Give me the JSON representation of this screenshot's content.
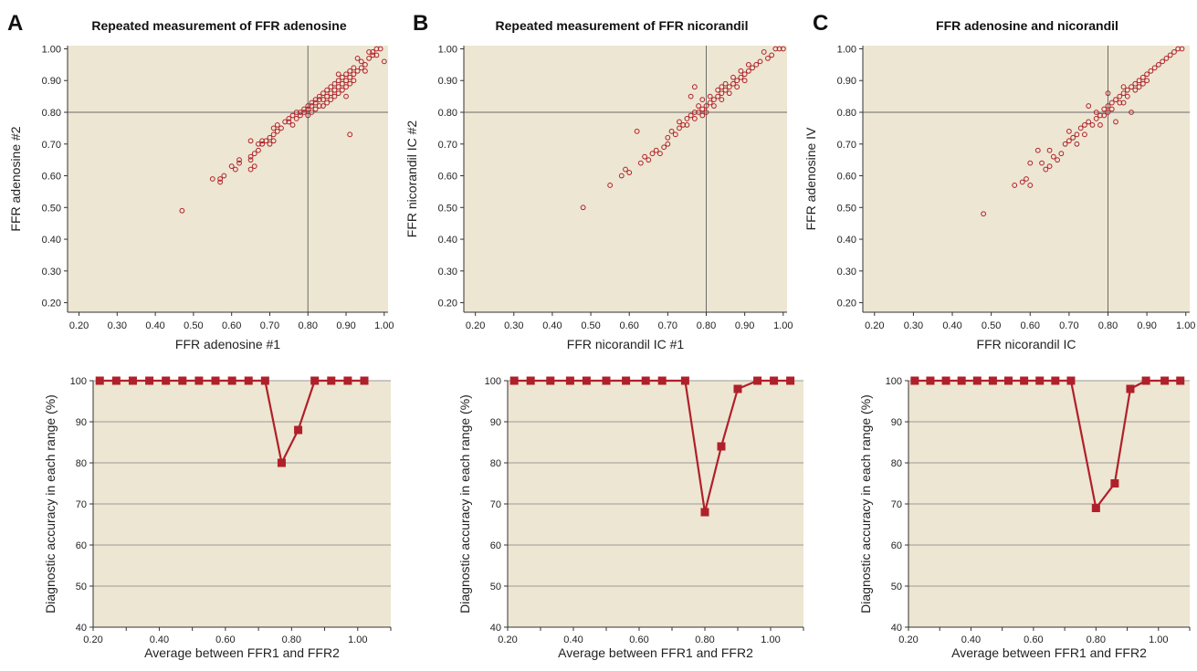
{
  "colors": {
    "plot_bg": "#ede6d2",
    "marker": "#b0202a",
    "ref_line": "#6b6b6b",
    "grid": "#9a9a9a"
  },
  "panels": [
    {
      "letter": "A",
      "title": "Repeated measurement of FFR adenosine"
    },
    {
      "letter": "B",
      "title": "Repeated measurement of FFR nicorandil"
    },
    {
      "letter": "C",
      "title": "FFR adenosine and nicorandil"
    }
  ],
  "chart_data": [
    {
      "type": "scatter",
      "panel": "A",
      "title": "Repeated measurement of FFR adenosine",
      "xlabel": "FFR adenosine #1",
      "ylabel": "FFR adenosine #2",
      "xlim": [
        0.17,
        1.01
      ],
      "ylim": [
        0.17,
        1.01
      ],
      "xticks": [
        "0.20",
        "0.30",
        "0.40",
        "0.50",
        "0.60",
        "0.70",
        "0.80",
        "0.90",
        "1.00"
      ],
      "yticks": [
        "0.20",
        "0.30",
        "0.40",
        "0.50",
        "0.60",
        "0.70",
        "0.80",
        "0.90",
        "1.00"
      ],
      "reference_lines": {
        "x": 0.8,
        "y": 0.8
      },
      "grid": false,
      "points": [
        [
          0.47,
          0.49
        ],
        [
          0.55,
          0.59
        ],
        [
          0.57,
          0.58
        ],
        [
          0.58,
          0.6
        ],
        [
          0.57,
          0.59
        ],
        [
          0.6,
          0.63
        ],
        [
          0.61,
          0.62
        ],
        [
          0.62,
          0.64
        ],
        [
          0.62,
          0.65
        ],
        [
          0.65,
          0.65
        ],
        [
          0.65,
          0.66
        ],
        [
          0.66,
          0.63
        ],
        [
          0.65,
          0.62
        ],
        [
          0.66,
          0.67
        ],
        [
          0.67,
          0.68
        ],
        [
          0.65,
          0.71
        ],
        [
          0.67,
          0.7
        ],
        [
          0.68,
          0.7
        ],
        [
          0.68,
          0.71
        ],
        [
          0.69,
          0.71
        ],
        [
          0.7,
          0.72
        ],
        [
          0.7,
          0.7
        ],
        [
          0.71,
          0.73
        ],
        [
          0.71,
          0.75
        ],
        [
          0.71,
          0.71
        ],
        [
          0.72,
          0.74
        ],
        [
          0.72,
          0.76
        ],
        [
          0.73,
          0.75
        ],
        [
          0.74,
          0.77
        ],
        [
          0.75,
          0.77
        ],
        [
          0.75,
          0.78
        ],
        [
          0.76,
          0.76
        ],
        [
          0.76,
          0.79
        ],
        [
          0.77,
          0.78
        ],
        [
          0.77,
          0.8
        ],
        [
          0.78,
          0.79
        ],
        [
          0.78,
          0.8
        ],
        [
          0.79,
          0.8
        ],
        [
          0.79,
          0.81
        ],
        [
          0.8,
          0.81
        ],
        [
          0.8,
          0.82
        ],
        [
          0.8,
          0.79
        ],
        [
          0.81,
          0.82
        ],
        [
          0.81,
          0.83
        ],
        [
          0.81,
          0.8
        ],
        [
          0.82,
          0.83
        ],
        [
          0.82,
          0.84
        ],
        [
          0.82,
          0.81
        ],
        [
          0.83,
          0.84
        ],
        [
          0.83,
          0.82
        ],
        [
          0.83,
          0.85
        ],
        [
          0.84,
          0.84
        ],
        [
          0.84,
          0.86
        ],
        [
          0.84,
          0.82
        ],
        [
          0.85,
          0.85
        ],
        [
          0.85,
          0.87
        ],
        [
          0.85,
          0.83
        ],
        [
          0.86,
          0.86
        ],
        [
          0.86,
          0.88
        ],
        [
          0.86,
          0.84
        ],
        [
          0.87,
          0.87
        ],
        [
          0.87,
          0.89
        ],
        [
          0.87,
          0.85
        ],
        [
          0.88,
          0.88
        ],
        [
          0.88,
          0.9
        ],
        [
          0.88,
          0.86
        ],
        [
          0.88,
          0.92
        ],
        [
          0.89,
          0.89
        ],
        [
          0.89,
          0.91
        ],
        [
          0.89,
          0.87
        ],
        [
          0.9,
          0.9
        ],
        [
          0.9,
          0.92
        ],
        [
          0.9,
          0.88
        ],
        [
          0.9,
          0.85
        ],
        [
          0.91,
          0.91
        ],
        [
          0.91,
          0.93
        ],
        [
          0.91,
          0.89
        ],
        [
          0.91,
          0.73
        ],
        [
          0.92,
          0.92
        ],
        [
          0.92,
          0.94
        ],
        [
          0.92,
          0.9
        ],
        [
          0.93,
          0.93
        ],
        [
          0.93,
          0.97
        ],
        [
          0.94,
          0.94
        ],
        [
          0.94,
          0.96
        ],
        [
          0.95,
          0.95
        ],
        [
          0.95,
          0.93
        ],
        [
          0.96,
          0.97
        ],
        [
          0.96,
          0.99
        ],
        [
          0.97,
          0.98
        ],
        [
          0.97,
          0.99
        ],
        [
          0.98,
          0.98
        ],
        [
          0.98,
          1.0
        ],
        [
          0.99,
          1.0
        ],
        [
          1.0,
          0.96
        ]
      ]
    },
    {
      "type": "scatter",
      "panel": "B",
      "title": "Repeated measurement of FFR nicorandil",
      "xlabel": "FFR nicorandil IC #1",
      "ylabel": "FFR nicorandil IC #2",
      "xlim": [
        0.17,
        1.01
      ],
      "ylim": [
        0.17,
        1.01
      ],
      "xticks": [
        "0.20",
        "0.30",
        "0.40",
        "0.50",
        "0.60",
        "0.70",
        "0.80",
        "0.90",
        "1.00"
      ],
      "yticks": [
        "0.20",
        "0.30",
        "0.40",
        "0.50",
        "0.60",
        "0.70",
        "0.80",
        "0.90",
        "1.00"
      ],
      "reference_lines": {
        "x": 0.8,
        "y": 0.8
      },
      "grid": false,
      "points": [
        [
          0.48,
          0.5
        ],
        [
          0.55,
          0.57
        ],
        [
          0.58,
          0.6
        ],
        [
          0.59,
          0.62
        ],
        [
          0.6,
          0.61
        ],
        [
          0.62,
          0.74
        ],
        [
          0.63,
          0.64
        ],
        [
          0.64,
          0.66
        ],
        [
          0.65,
          0.65
        ],
        [
          0.66,
          0.67
        ],
        [
          0.67,
          0.68
        ],
        [
          0.68,
          0.67
        ],
        [
          0.69,
          0.69
        ],
        [
          0.7,
          0.7
        ],
        [
          0.7,
          0.72
        ],
        [
          0.71,
          0.74
        ],
        [
          0.72,
          0.73
        ],
        [
          0.73,
          0.75
        ],
        [
          0.73,
          0.77
        ],
        [
          0.74,
          0.76
        ],
        [
          0.75,
          0.78
        ],
        [
          0.75,
          0.76
        ],
        [
          0.76,
          0.79
        ],
        [
          0.76,
          0.85
        ],
        [
          0.77,
          0.8
        ],
        [
          0.77,
          0.78
        ],
        [
          0.77,
          0.88
        ],
        [
          0.78,
          0.8
        ],
        [
          0.78,
          0.82
        ],
        [
          0.79,
          0.81
        ],
        [
          0.79,
          0.79
        ],
        [
          0.79,
          0.84
        ],
        [
          0.8,
          0.82
        ],
        [
          0.8,
          0.8
        ],
        [
          0.81,
          0.83
        ],
        [
          0.81,
          0.85
        ],
        [
          0.82,
          0.84
        ],
        [
          0.82,
          0.82
        ],
        [
          0.83,
          0.85
        ],
        [
          0.83,
          0.87
        ],
        [
          0.84,
          0.86
        ],
        [
          0.84,
          0.88
        ],
        [
          0.84,
          0.84
        ],
        [
          0.85,
          0.87
        ],
        [
          0.85,
          0.89
        ],
        [
          0.86,
          0.88
        ],
        [
          0.86,
          0.86
        ],
        [
          0.87,
          0.89
        ],
        [
          0.87,
          0.91
        ],
        [
          0.88,
          0.9
        ],
        [
          0.88,
          0.88
        ],
        [
          0.89,
          0.91
        ],
        [
          0.89,
          0.93
        ],
        [
          0.9,
          0.92
        ],
        [
          0.9,
          0.9
        ],
        [
          0.91,
          0.93
        ],
        [
          0.91,
          0.95
        ],
        [
          0.92,
          0.94
        ],
        [
          0.93,
          0.95
        ],
        [
          0.94,
          0.96
        ],
        [
          0.95,
          0.99
        ],
        [
          0.96,
          0.97
        ],
        [
          0.97,
          0.98
        ],
        [
          0.98,
          1.0
        ],
        [
          0.99,
          1.0
        ],
        [
          1.0,
          1.0
        ]
      ]
    },
    {
      "type": "scatter",
      "panel": "C",
      "title": "FFR adenosine and nicorandil",
      "xlabel": "FFR nicorandil IC",
      "ylabel": "FFR adenosine IV",
      "xlim": [
        0.17,
        1.01
      ],
      "ylim": [
        0.17,
        1.01
      ],
      "xticks": [
        "0.20",
        "0.30",
        "0.40",
        "0.50",
        "0.60",
        "0.70",
        "0.80",
        "0.90",
        "1.00"
      ],
      "yticks": [
        "0.20",
        "0.30",
        "0.40",
        "0.50",
        "0.60",
        "0.70",
        "0.80",
        "0.90",
        "1.00"
      ],
      "reference_lines": {
        "x": 0.8,
        "y": 0.8
      },
      "grid": false,
      "points": [
        [
          0.48,
          0.48
        ],
        [
          0.56,
          0.57
        ],
        [
          0.58,
          0.58
        ],
        [
          0.59,
          0.59
        ],
        [
          0.6,
          0.64
        ],
        [
          0.6,
          0.57
        ],
        [
          0.62,
          0.68
        ],
        [
          0.63,
          0.64
        ],
        [
          0.64,
          0.62
        ],
        [
          0.65,
          0.63
        ],
        [
          0.65,
          0.68
        ],
        [
          0.66,
          0.66
        ],
        [
          0.67,
          0.65
        ],
        [
          0.68,
          0.67
        ],
        [
          0.69,
          0.7
        ],
        [
          0.7,
          0.71
        ],
        [
          0.7,
          0.74
        ],
        [
          0.71,
          0.72
        ],
        [
          0.72,
          0.7
        ],
        [
          0.72,
          0.73
        ],
        [
          0.73,
          0.75
        ],
        [
          0.74,
          0.76
        ],
        [
          0.74,
          0.73
        ],
        [
          0.75,
          0.77
        ],
        [
          0.75,
          0.82
        ],
        [
          0.76,
          0.76
        ],
        [
          0.77,
          0.78
        ],
        [
          0.77,
          0.8
        ],
        [
          0.78,
          0.79
        ],
        [
          0.78,
          0.76
        ],
        [
          0.79,
          0.81
        ],
        [
          0.79,
          0.79
        ],
        [
          0.8,
          0.82
        ],
        [
          0.8,
          0.8
        ],
        [
          0.8,
          0.86
        ],
        [
          0.81,
          0.83
        ],
        [
          0.81,
          0.81
        ],
        [
          0.82,
          0.84
        ],
        [
          0.82,
          0.77
        ],
        [
          0.83,
          0.85
        ],
        [
          0.83,
          0.83
        ],
        [
          0.84,
          0.86
        ],
        [
          0.84,
          0.83
        ],
        [
          0.84,
          0.88
        ],
        [
          0.85,
          0.87
        ],
        [
          0.85,
          0.85
        ],
        [
          0.86,
          0.88
        ],
        [
          0.86,
          0.8
        ],
        [
          0.87,
          0.89
        ],
        [
          0.87,
          0.87
        ],
        [
          0.88,
          0.9
        ],
        [
          0.88,
          0.88
        ],
        [
          0.89,
          0.91
        ],
        [
          0.89,
          0.89
        ],
        [
          0.9,
          0.92
        ],
        [
          0.9,
          0.9
        ],
        [
          0.91,
          0.93
        ],
        [
          0.92,
          0.94
        ],
        [
          0.93,
          0.95
        ],
        [
          0.94,
          0.96
        ],
        [
          0.95,
          0.97
        ],
        [
          0.96,
          0.98
        ],
        [
          0.97,
          0.99
        ],
        [
          0.98,
          1.0
        ],
        [
          0.99,
          1.0
        ]
      ]
    },
    {
      "type": "line",
      "panel": "A",
      "xlabel": "Average between FFR1 and FFR2",
      "ylabel": "Diagnostic accuracy in each range (%)",
      "xlim": [
        0.2,
        1.1
      ],
      "ylim": [
        40,
        100
      ],
      "xticks": [
        "0.20",
        "0.40",
        "0.60",
        "0.80",
        "1.00"
      ],
      "yticks": [
        "40",
        "50",
        "60",
        "70",
        "80",
        "90",
        "100"
      ],
      "grid": true,
      "x": [
        0.22,
        0.27,
        0.32,
        0.37,
        0.42,
        0.47,
        0.52,
        0.57,
        0.62,
        0.67,
        0.72,
        0.77,
        0.82,
        0.87,
        0.92,
        0.97,
        1.02
      ],
      "values": [
        100,
        100,
        100,
        100,
        100,
        100,
        100,
        100,
        100,
        100,
        100,
        80,
        88,
        100,
        100,
        100,
        100
      ]
    },
    {
      "type": "line",
      "panel": "B",
      "xlabel": "Average between FFR1 and FFR2",
      "ylabel": "Diagnostic accuracy in each range (%)",
      "xlim": [
        0.2,
        1.1
      ],
      "ylim": [
        40,
        100
      ],
      "xticks": [
        "0.20",
        "0.40",
        "0.60",
        "0.80",
        "1.00"
      ],
      "yticks": [
        "40",
        "50",
        "60",
        "70",
        "80",
        "90",
        "100"
      ],
      "grid": true,
      "x": [
        0.22,
        0.27,
        0.33,
        0.39,
        0.44,
        0.5,
        0.56,
        0.62,
        0.67,
        0.74,
        0.8,
        0.85,
        0.9,
        0.96,
        1.01,
        1.06
      ],
      "values": [
        100,
        100,
        100,
        100,
        100,
        100,
        100,
        100,
        100,
        100,
        68,
        84,
        98,
        100,
        100,
        100
      ]
    },
    {
      "type": "line",
      "panel": "C",
      "xlabel": "Average between FFR1 and FFR2",
      "ylabel": "Diagnostic accuracy in each range (%)",
      "xlim": [
        0.2,
        1.1
      ],
      "ylim": [
        40,
        100
      ],
      "xticks": [
        "0.20",
        "0.40",
        "0.60",
        "0.80",
        "1.00"
      ],
      "yticks": [
        "40",
        "50",
        "60",
        "70",
        "80",
        "90",
        "100"
      ],
      "grid": true,
      "x": [
        0.22,
        0.27,
        0.32,
        0.37,
        0.42,
        0.47,
        0.52,
        0.57,
        0.62,
        0.67,
        0.72,
        0.8,
        0.86,
        0.91,
        0.96,
        1.02,
        1.07
      ],
      "values": [
        100,
        100,
        100,
        100,
        100,
        100,
        100,
        100,
        100,
        100,
        100,
        69,
        75,
        98,
        100,
        100,
        100
      ]
    }
  ]
}
